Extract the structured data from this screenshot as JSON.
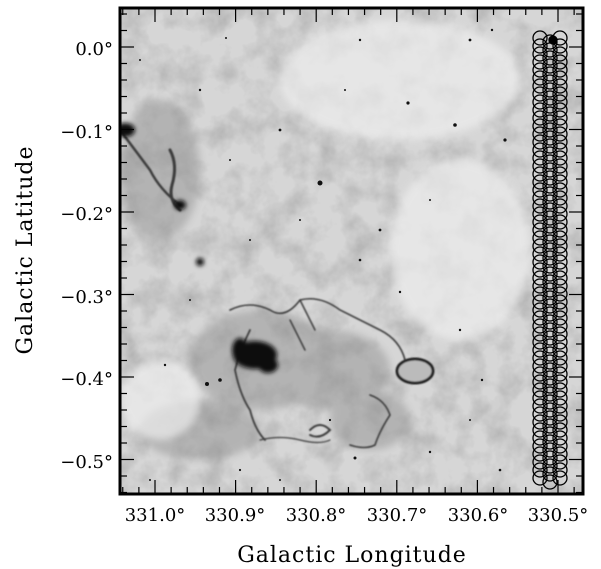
{
  "figure": {
    "xlabel": "Galactic Longitude",
    "ylabel": "Galactic Latitude",
    "x_ticks": [
      "331.0°",
      "330.9°",
      "330.8°",
      "330.7°",
      "330.6°",
      "330.5°"
    ],
    "y_ticks": [
      "0.0°",
      "−0.1°",
      "−0.2°",
      "−0.3°",
      "−0.4°",
      "−0.5°"
    ],
    "x_range_deg": [
      331.04,
      330.47
    ],
    "y_range_deg": [
      0.05,
      -0.54
    ],
    "image_style": "inverted grayscale infrared map",
    "beam_pointings": "column of overlapping circles along right edge"
  }
}
